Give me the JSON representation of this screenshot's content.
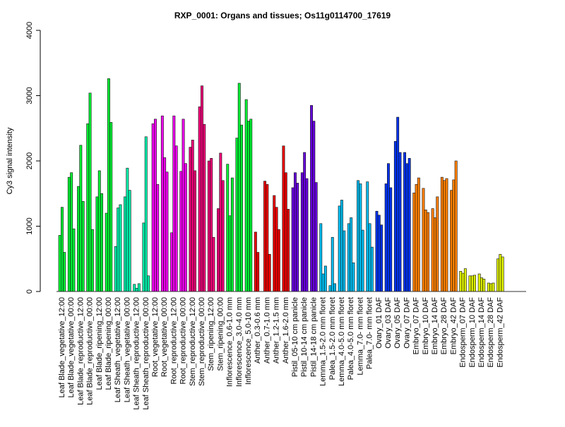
{
  "chart_data": {
    "type": "bar",
    "title": "RXP_0001: Organs and tissues; Os11g0114700_17619",
    "xlabel": "",
    "ylabel": "Cy3 signal intensity",
    "ylim": [
      0,
      4000
    ],
    "yticks": [
      "0",
      "1000",
      "2000",
      "3000",
      "4000"
    ],
    "ytick_values": [
      0,
      1000,
      2000,
      3000,
      4000
    ],
    "grid": false,
    "bars_per_category": 3,
    "categories": [
      "Leaf Blade_vegetative_12:00",
      "Leaf Blade_vegetative_00:00",
      "Leaf Blade_reproductive_12:00",
      "Leaf Blade_reproductive_00:00",
      "Leaf Blade_ripening_12:00",
      "Leaf Blade_ripening_00:00",
      "Leaf Sheath_vegetative_12:00",
      "Leaf Sheath_vegetative_00:00",
      "Leaf Sheath_reproductive_12:00",
      "Leaf Sheath_reproductive_00:00",
      "Root_vegetative_12:00",
      "Root_vegetative_00:00",
      "Root_reproductive_12:00",
      "Root_reproductive_00:00",
      "Stem_reproductive_12:00",
      "Stem_reproductive_00:00",
      "Stem_ripening_12:00",
      "Stem_ripening_00:00",
      "Inflorescence_0.6-1.0 mm",
      "Inflorescence_3.0-4.0 mm",
      "Inflorescence_5.0-10 mm",
      "Anther_0.3-0.6 mm",
      "Anther_0.7-1.0 mm",
      "Anther_1.2-1.5 mm",
      "Anther_1.6-2.0 mm",
      "Pistil_05-10 cm panicle",
      "Pistil_10-14 cm panicle",
      "Pistil_14-18 cm panicle",
      "Lemma_1.5-2.0 mm floret",
      "Palea_1.5-2.0 mm floret",
      "Lemma_4.0-5.0 mm floret",
      "Palea_4.0-5.0 mm floret",
      "Lemma_7.0- mm floret",
      "Palea_7.0- mm floret",
      "Ovary_01 DAF",
      "Ovary_03 DAF",
      "Ovary_05 DAF",
      "Ovary_07 DAF",
      "Embryo_07 DAF",
      "Embryo_10 DAF",
      "Embryo_14 DAF",
      "Embryo_28 DAF",
      "Embryo_42 DAF",
      "Endosperm_07 DAF",
      "Endosperm_10 DAF",
      "Endosperm_14 DAF",
      "Endosperm_28 DAF",
      "Endosperm_42 DAF"
    ],
    "values": [
      [
        860,
        1290,
        600
      ],
      [
        1750,
        1820,
        960
      ],
      [
        1610,
        2240,
        1380
      ],
      [
        2570,
        3040,
        950
      ],
      [
        1450,
        1850,
        1500
      ],
      [
        1200,
        3260,
        2590
      ],
      [
        690,
        1280,
        1330
      ],
      [
        1450,
        1890,
        1550
      ],
      [
        110,
        50,
        120
      ],
      [
        1050,
        2370,
        240
      ],
      [
        2570,
        2640,
        1640
      ],
      [
        2690,
        2050,
        1830
      ],
      [
        900,
        2690,
        2230
      ],
      [
        1840,
        2640,
        1960
      ],
      [
        2210,
        2320,
        1850
      ],
      [
        2830,
        3150,
        2560
      ],
      [
        2000,
        2040,
        830
      ],
      [
        1270,
        2120,
        1700
      ],
      [
        1950,
        1160,
        1740
      ],
      [
        2350,
        3190,
        2550
      ],
      [
        2940,
        2610,
        2640
      ],
      [
        910,
        600,
        0
      ],
      [
        1690,
        1640,
        570
      ],
      [
        1470,
        1290,
        950
      ],
      [
        2230,
        1820,
        1260
      ],
      [
        1590,
        1820,
        1660
      ],
      [
        1820,
        2130,
        1730
      ],
      [
        2850,
        2610,
        1670
      ],
      [
        1040,
        270,
        390
      ],
      [
        90,
        830,
        120
      ],
      [
        1310,
        1400,
        930
      ],
      [
        1040,
        1130,
        440
      ],
      [
        1700,
        1650,
        940
      ],
      [
        1680,
        1040,
        680
      ],
      [
        1230,
        1170,
        1020
      ],
      [
        1650,
        1960,
        1590
      ],
      [
        2300,
        2670,
        2130
      ],
      [
        2130,
        1960,
        2040
      ],
      [
        1510,
        1640,
        1740
      ],
      [
        1580,
        1250,
        1210
      ],
      [
        1270,
        1130,
        1450
      ],
      [
        1750,
        1700,
        1730
      ],
      [
        1550,
        1710,
        2000
      ],
      [
        310,
        280,
        350
      ],
      [
        240,
        240,
        250
      ],
      [
        270,
        210,
        190
      ],
      [
        130,
        120,
        130
      ],
      [
        500,
        570,
        530
      ]
    ],
    "colors": [
      "#00ee33",
      "#00ee33",
      "#00ee33",
      "#00ee33",
      "#00ee33",
      "#00ee33",
      "#00eeaa",
      "#00eeaa",
      "#00eeaa",
      "#00eeaa",
      "#ee00ee",
      "#ee00ee",
      "#ee00ee",
      "#ee00ee",
      "#ee0077",
      "#ee0077",
      "#ee0077",
      "#ee0077",
      "#00ee33",
      "#00ee33",
      "#00ee33",
      "#ee0000",
      "#ee0000",
      "#ee0000",
      "#ee0000",
      "#6600dd",
      "#6600dd",
      "#6600dd",
      "#00bbee",
      "#00bbee",
      "#00bbee",
      "#00bbee",
      "#00bbee",
      "#00bbee",
      "#0033ee",
      "#0033ee",
      "#0033ee",
      "#0033ee",
      "#ff8000",
      "#ff8000",
      "#ff8000",
      "#ff8000",
      "#ff8000",
      "#ddee00",
      "#ddee00",
      "#ddee00",
      "#ddee00",
      "#ddee00"
    ]
  }
}
